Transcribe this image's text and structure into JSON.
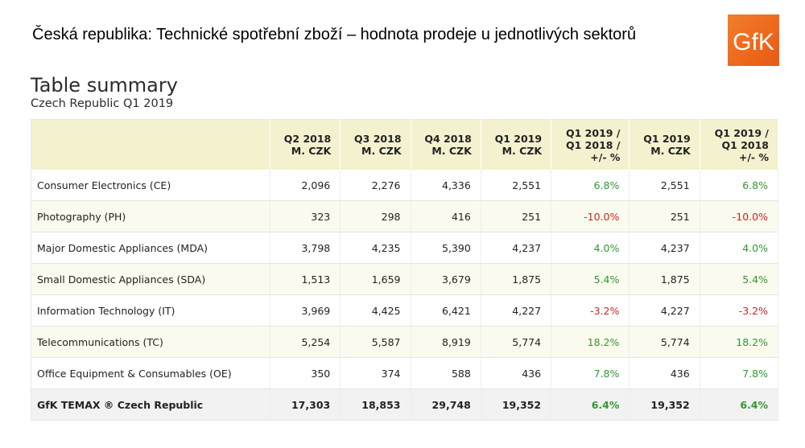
{
  "header": {
    "title": "Česká republika: Technické spotřební zboží – hodnota prodeje u jednotlivých sektorů",
    "logo_text": "GfK",
    "logo_color": "#ee6d1f"
  },
  "section": {
    "title": "Table summary",
    "subtitle": "Czech Republic Q1 2019"
  },
  "table": {
    "columns": [
      "",
      "Q2 2018\nM. CZK",
      "Q3 2018\nM. CZK",
      "Q4 2018\nM. CZK",
      "Q1 2019\nM. CZK",
      "Q1 2019 /\nQ1 2018 /\n+/- %",
      "Q1 2019\nM. CZK",
      "Q1 2019 /\nQ1 2018\n+/- %"
    ],
    "rows": [
      {
        "label": "Consumer Electronics (CE)",
        "q2_2018": "2,096",
        "q3_2018": "2,276",
        "q4_2018": "4,336",
        "q1_2019": "2,551",
        "change": "6.8%",
        "q1_2019_ytd": "2,551",
        "change_ytd": "6.8%",
        "trend": "pos"
      },
      {
        "label": "Photography (PH)",
        "q2_2018": "323",
        "q3_2018": "298",
        "q4_2018": "416",
        "q1_2019": "251",
        "change": "-10.0%",
        "q1_2019_ytd": "251",
        "change_ytd": "-10.0%",
        "trend": "neg"
      },
      {
        "label": "Major Domestic Appliances (MDA)",
        "q2_2018": "3,798",
        "q3_2018": "4,235",
        "q4_2018": "5,390",
        "q1_2019": "4,237",
        "change": "4.0%",
        "q1_2019_ytd": "4,237",
        "change_ytd": "4.0%",
        "trend": "pos"
      },
      {
        "label": "Small Domestic Appliances (SDA)",
        "q2_2018": "1,513",
        "q3_2018": "1,659",
        "q4_2018": "3,679",
        "q1_2019": "1,875",
        "change": "5.4%",
        "q1_2019_ytd": "1,875",
        "change_ytd": "5.4%",
        "trend": "pos"
      },
      {
        "label": "Information Technology (IT)",
        "q2_2018": "3,969",
        "q3_2018": "4,425",
        "q4_2018": "6,421",
        "q1_2019": "4,227",
        "change": "-3.2%",
        "q1_2019_ytd": "4,227",
        "change_ytd": "-3.2%",
        "trend": "neg"
      },
      {
        "label": "Telecommunications (TC)",
        "q2_2018": "5,254",
        "q3_2018": "5,587",
        "q4_2018": "8,919",
        "q1_2019": "5,774",
        "change": "18.2%",
        "q1_2019_ytd": "5,774",
        "change_ytd": "18.2%",
        "trend": "pos"
      },
      {
        "label": "Office Equipment & Consumables (OE)",
        "q2_2018": "350",
        "q3_2018": "374",
        "q4_2018": "588",
        "q1_2019": "436",
        "change": "7.8%",
        "q1_2019_ytd": "436",
        "change_ytd": "7.8%",
        "trend": "pos"
      }
    ],
    "total": {
      "label": "GfK TEMAX ® Czech Republic",
      "q2_2018": "17,303",
      "q3_2018": "18,853",
      "q4_2018": "29,748",
      "q1_2019": "19,352",
      "change": "6.4%",
      "q1_2019_ytd": "19,352",
      "change_ytd": "6.4%",
      "trend": "pos"
    }
  },
  "colors": {
    "positive": "#2e9a2e",
    "negative": "#d42020",
    "header_bg": "#f4f1cf",
    "stripe_bg": "#fbfaee",
    "total_bg": "#f2f2f2"
  }
}
